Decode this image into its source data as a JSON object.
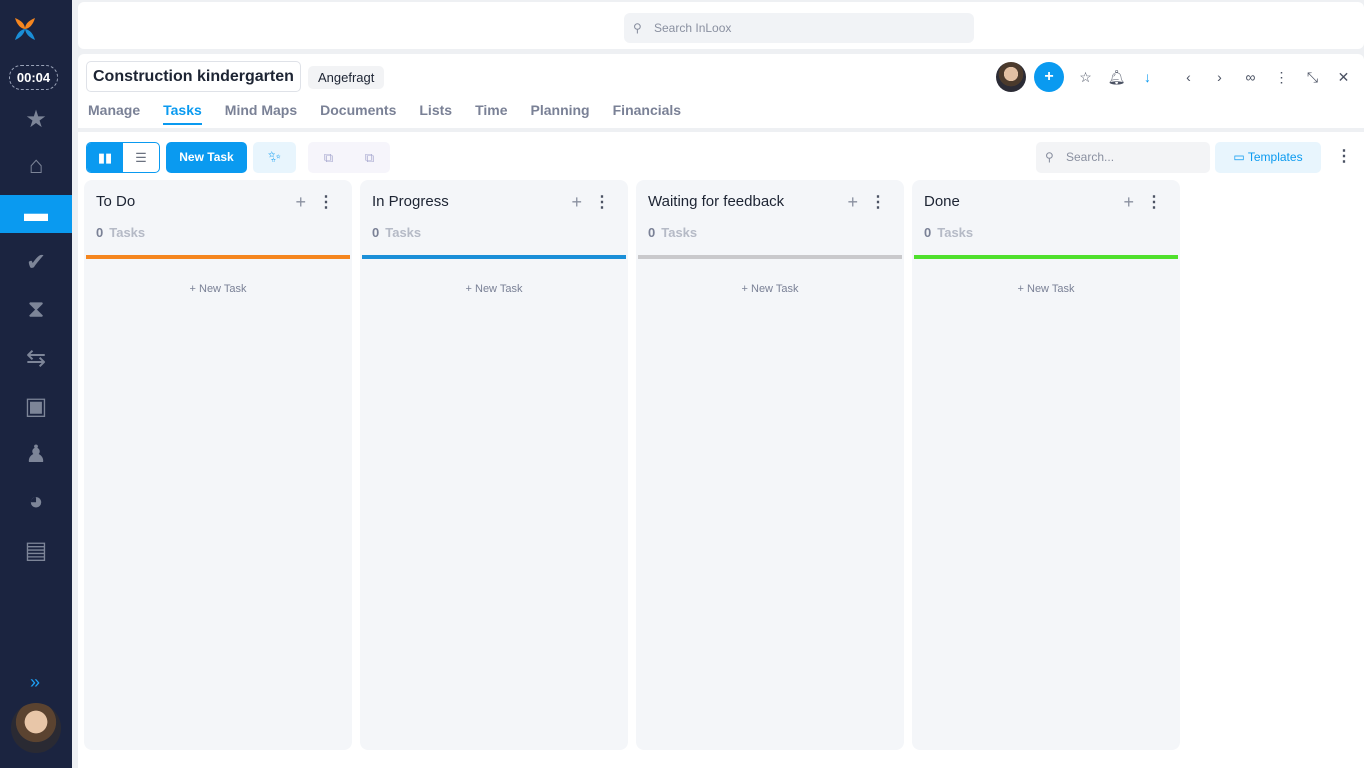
{
  "sidebar": {
    "timer": "00:04",
    "items": [
      "star-icon",
      "home-icon",
      "projects-icon",
      "tasks-icon",
      "hourglass-icon",
      "workflow-icon",
      "contacts-icon",
      "user-location-icon",
      "reports-icon",
      "documents-icon"
    ],
    "active_index": 2
  },
  "topbar": {
    "search_placeholder": "Search InLoox"
  },
  "project": {
    "title": "Construction kindergarten",
    "status": "Angefragt"
  },
  "tabs": [
    "Manage",
    "Tasks",
    "Mind Maps",
    "Documents",
    "Lists",
    "Time",
    "Planning",
    "Financials"
  ],
  "active_tab": "Tasks",
  "toolbar": {
    "new_task": "New Task",
    "search_placeholder": "Search...",
    "templates": "Templates"
  },
  "columns": [
    {
      "title": "To Do",
      "count": "0",
      "count_label": "Tasks",
      "color": "#f5861f",
      "new_task": "New Task"
    },
    {
      "title": "In Progress",
      "count": "0",
      "count_label": "Tasks",
      "color": "#1a8fd8",
      "new_task": "New Task"
    },
    {
      "title": "Waiting for feedback",
      "count": "0",
      "count_label": "Tasks",
      "color": "#c9c9cc",
      "new_task": "New Task"
    },
    {
      "title": "Done",
      "count": "0",
      "count_label": "Tasks",
      "color": "#4fe02c",
      "new_task": "New Task"
    }
  ],
  "colors": {
    "accent": "#0a9af0",
    "sidebar": "#1b2440"
  }
}
